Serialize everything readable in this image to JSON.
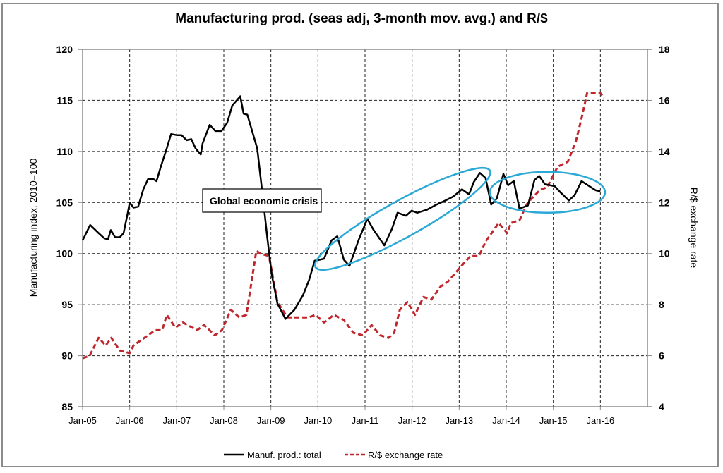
{
  "chart_data": {
    "type": "line",
    "title": "Manufacturing prod. (seas adj, 3-month mov. avg.) and R/$",
    "xlabel": "",
    "ylabel": "Manufacturing index, 2010=100",
    "y2label": "R/$ exchange rate",
    "xlim": [
      2005.0,
      2017.0
    ],
    "ylim": [
      85,
      120
    ],
    "y2lim": [
      4,
      18
    ],
    "x_ticks": [
      {
        "value": 2005,
        "label": "Jan-05"
      },
      {
        "value": 2006,
        "label": "Jan-06"
      },
      {
        "value": 2007,
        "label": "Jan-07"
      },
      {
        "value": 2008,
        "label": "Jan-08"
      },
      {
        "value": 2009,
        "label": "Jan-09"
      },
      {
        "value": 2010,
        "label": "Jan-10"
      },
      {
        "value": 2011,
        "label": "Jan-11"
      },
      {
        "value": 2012,
        "label": "Jan-12"
      },
      {
        "value": 2013,
        "label": "Jan-13"
      },
      {
        "value": 2014,
        "label": "Jan-14"
      },
      {
        "value": 2015,
        "label": "Jan-15"
      },
      {
        "value": 2016,
        "label": "Jan-16"
      }
    ],
    "y_ticks": [
      "85",
      "90",
      "95",
      "100",
      "105",
      "110",
      "115",
      "120"
    ],
    "y_tick_values": [
      85,
      90,
      95,
      100,
      105,
      110,
      115,
      120
    ],
    "y2_ticks": [
      "4",
      "6",
      "8",
      "10",
      "12",
      "14",
      "16",
      "18"
    ],
    "y2_tick_values": [
      4,
      6,
      8,
      10,
      12,
      14,
      16,
      18
    ],
    "grid": true,
    "legend_position": "bottom",
    "series": [
      {
        "name": "Manuf. prod.: total",
        "axis": "left",
        "color": "#000000",
        "style": "solid",
        "x": [
          2005.0,
          2005.16,
          2005.34,
          2005.46,
          2005.54,
          2005.6,
          2005.69,
          2005.79,
          2005.87,
          2005.96,
          2006.0,
          2006.08,
          2006.18,
          2006.29,
          2006.39,
          2006.5,
          2006.57,
          2006.66,
          2006.78,
          2006.88,
          2007.0,
          2007.1,
          2007.21,
          2007.31,
          2007.4,
          2007.51,
          2007.55,
          2007.7,
          2007.82,
          2007.95,
          2008.07,
          2008.18,
          2008.35,
          2008.42,
          2008.5,
          2008.71,
          2008.83,
          2008.93,
          2009.02,
          2009.14,
          2009.31,
          2009.5,
          2009.68,
          2009.81,
          2009.93,
          2010.04,
          2010.13,
          2010.29,
          2010.41,
          2010.55,
          2010.67,
          2010.87,
          2011.05,
          2011.17,
          2011.41,
          2011.57,
          2011.69,
          2011.87,
          2011.99,
          2012.11,
          2012.32,
          2012.52,
          2012.71,
          2012.88,
          2013.06,
          2013.21,
          2013.31,
          2013.44,
          2013.56,
          2013.68,
          2013.8,
          2013.94,
          2014.04,
          2014.16,
          2014.28,
          2014.46,
          2014.6,
          2014.7,
          2014.82,
          2015.03,
          2015.15,
          2015.33,
          2015.45,
          2015.6,
          2015.9,
          2016.0
        ],
        "y": [
          101.3,
          102.8,
          102.0,
          101.5,
          101.4,
          102.3,
          101.6,
          101.6,
          102.0,
          104.0,
          105.0,
          104.5,
          104.6,
          106.3,
          107.3,
          107.3,
          107.1,
          108.5,
          110.2,
          111.7,
          111.6,
          111.6,
          111.1,
          111.2,
          110.3,
          109.7,
          110.8,
          112.6,
          112.0,
          112.0,
          112.8,
          114.5,
          115.4,
          113.7,
          113.6,
          110.3,
          105.5,
          101.3,
          97.9,
          95.1,
          93.6,
          94.5,
          95.9,
          97.4,
          99.3,
          99.4,
          99.5,
          101.3,
          101.7,
          99.4,
          98.8,
          101.4,
          103.4,
          102.4,
          100.8,
          102.4,
          104.0,
          103.7,
          104.2,
          104.0,
          104.3,
          104.8,
          105.2,
          105.6,
          106.3,
          105.8,
          107.0,
          107.9,
          107.4,
          104.8,
          105.4,
          107.8,
          106.7,
          107.1,
          104.4,
          104.7,
          107.2,
          107.6,
          106.8,
          106.6,
          106.0,
          105.2,
          105.7,
          107.1,
          106.2,
          106.1
        ]
      },
      {
        "name": "R/$ exchange rate",
        "axis": "right",
        "color": "#c0272d",
        "style": "dashed",
        "x": [
          2005.0,
          2005.15,
          2005.34,
          2005.49,
          2005.61,
          2005.79,
          2006.0,
          2006.08,
          2006.39,
          2006.54,
          2006.69,
          2006.79,
          2006.97,
          2007.13,
          2007.43,
          2007.58,
          2007.81,
          2007.96,
          2008.15,
          2008.33,
          2008.48,
          2008.69,
          2008.78,
          2008.96,
          2009.14,
          2009.35,
          2009.6,
          2009.8,
          2009.95,
          2010.13,
          2010.34,
          2010.55,
          2010.75,
          2010.95,
          2011.14,
          2011.32,
          2011.5,
          2011.62,
          2011.74,
          2011.9,
          2012.06,
          2012.24,
          2012.41,
          2012.6,
          2012.76,
          2013.09,
          2013.24,
          2013.42,
          2013.57,
          2013.69,
          2013.84,
          2014.02,
          2014.1,
          2014.28,
          2014.43,
          2014.46,
          2014.72,
          2014.87,
          2015.09,
          2015.31,
          2015.48,
          2015.6,
          2015.72,
          2015.99,
          2016.08
        ],
        "y": [
          5.9,
          6.0,
          6.7,
          6.4,
          6.7,
          6.2,
          6.1,
          6.4,
          6.8,
          7.0,
          7.0,
          7.6,
          7.1,
          7.3,
          7.0,
          7.2,
          6.8,
          7.0,
          7.8,
          7.5,
          7.6,
          10.1,
          10.0,
          9.9,
          8.1,
          7.5,
          7.5,
          7.5,
          7.6,
          7.3,
          7.6,
          7.4,
          6.9,
          6.8,
          7.2,
          6.8,
          6.7,
          6.9,
          7.8,
          8.1,
          7.6,
          8.3,
          8.2,
          8.7,
          8.9,
          9.6,
          9.9,
          9.9,
          10.5,
          10.8,
          11.2,
          10.8,
          11.2,
          11.3,
          11.9,
          12.0,
          12.5,
          12.6,
          13.4,
          13.6,
          14.4,
          15.3,
          16.3,
          16.3,
          16.1
        ]
      }
    ],
    "annotations": [
      {
        "type": "text-box",
        "text": "Global economic crisis",
        "x": 2007.6,
        "y": 104.7
      },
      {
        "type": "ellipse",
        "label": "uptrend-highlight",
        "from": [
          2010.0,
          98.8
        ],
        "to": [
          2013.6,
          108.0
        ]
      },
      {
        "type": "ellipse",
        "label": "plateau-highlight",
        "from": [
          2013.65,
          104.0
        ],
        "to": [
          2016.1,
          108.0
        ]
      }
    ]
  },
  "legend": {
    "items": [
      {
        "label": "Manuf. prod.: total",
        "color": "#000000",
        "style": "solid"
      },
      {
        "label": "R/$ exchange rate",
        "color": "#c0272d",
        "style": "dashed"
      }
    ]
  },
  "colors": {
    "highlight_ellipse": "#2aa8d6",
    "grid": "#000000",
    "axis": "#8c8c8c"
  }
}
